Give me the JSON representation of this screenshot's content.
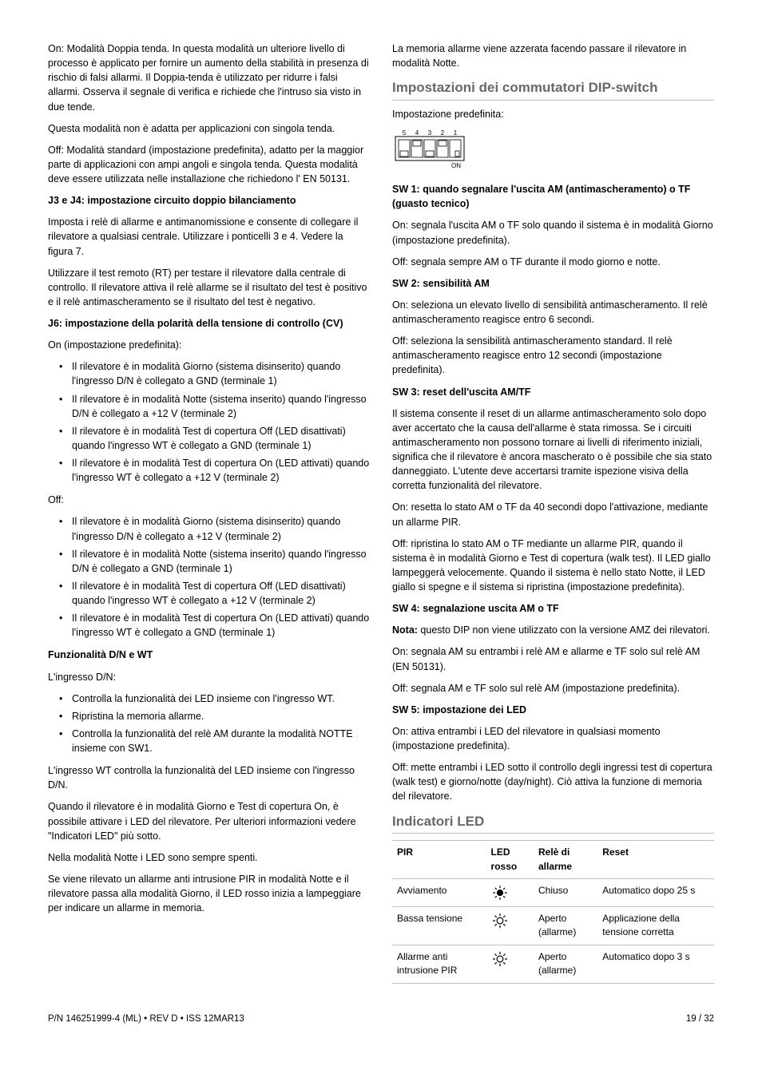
{
  "left": {
    "p1": "On: Modalità Doppia tenda. In questa modalità un ulteriore livello di processo è applicato per fornire un aumento della stabilità in presenza di rischio di falsi allarmi. Il Doppia-tenda è utilizzato per ridurre i falsi allarmi. Osserva il segnale di verifica e richiede che l'intruso sia visto in due tende.",
    "p2": "Questa modalità non è adatta per applicazioni con singola tenda.",
    "p3": "Off: Modalità standard (impostazione predefinita), adatto per la maggior parte di applicazioni con ampi angoli e singola tenda. Questa modalità deve essere utilizzata nelle installazione che richiedono l' EN 50131.",
    "h_j3j4": "J3 e J4: impostazione circuito doppio bilanciamento",
    "p4": "Imposta i relè di allarme e antimanomissione e consente di collegare il rilevatore a qualsiasi centrale. Utilizzare i ponticelli 3 e 4. Vedere la figura 7.",
    "p5": "Utilizzare il test remoto (RT) per testare il rilevatore dalla centrale di controllo. Il rilevatore attiva il relè allarme se il risultato del test è positivo e il relè antimascheramento se il risultato del test è negativo.",
    "h_j6": "J6: impostazione della polarità della tensione di controllo (CV)",
    "p6": "On (impostazione predefinita):",
    "on_list": [
      "Il rilevatore è in modalità Giorno (sistema disinserito) quando l'ingresso D/N è collegato a GND (terminale 1)",
      "Il rilevatore è in modalità Notte (sistema inserito) quando l'ingresso D/N è collegato a +12 V (terminale 2)",
      "Il rilevatore è in modalità Test di copertura Off (LED disattivati) quando l'ingresso WT è collegato a GND (terminale 1)",
      "Il rilevatore è in modalità Test di copertura On (LED attivati) quando l'ingresso WT è collegato a +12 V (terminale 2)"
    ],
    "p7": "Off:",
    "off_list": [
      "Il rilevatore è in modalità Giorno (sistema disinserito) quando l'ingresso D/N è collegato a +12 V (terminale 2)",
      "Il rilevatore è in modalità Notte (sistema inserito) quando l'ingresso D/N è collegato a GND (terminale 1)",
      "Il rilevatore è in modalità Test di copertura Off (LED disattivati) quando l'ingresso WT è collegato a +12 V (terminale 2)",
      "Il rilevatore è in modalità Test di copertura On (LED attivati) quando l'ingresso WT è collegato a GND (terminale 1)"
    ],
    "h_dn_wt": "Funzionalità D/N e WT",
    "p8": "L'ingresso D/N:",
    "dn_list": [
      "Controlla la funzionalità dei LED insieme con l'ingresso WT.",
      "Ripristina la memoria allarme.",
      "Controlla la funzionalità del relè AM durante la modalità NOTTE insieme con SW1."
    ],
    "p9": "L'ingresso WT controlla la funzionalità del LED insieme con l'ingresso D/N.",
    "p10": "Quando il rilevatore è in modalità Giorno e Test di copertura On, è possibile attivare i LED del rilevatore. Per ulteriori informazioni vedere \"Indicatori LED\" più sotto.",
    "p11": "Nella modalità Notte i LED sono sempre spenti.",
    "p12": "Se viene rilevato un allarme anti intrusione PIR in modalità Notte e il rilevatore passa alla modalità Giorno, il LED rosso inizia a lampeggiare per indicare un allarme in memoria."
  },
  "right": {
    "p1": "La memoria allarme viene azzerata facendo passare il rilevatore in modalità Notte.",
    "h_dip": "Impostazioni dei commutatori DIP-switch",
    "p2": "Impostazione predefinita:",
    "dip": {
      "labels": [
        "5",
        "4",
        "3",
        "2",
        "1"
      ],
      "on_label": "ON",
      "positions": [
        "down",
        "up",
        "down",
        "up",
        "down"
      ],
      "last_right": true
    },
    "h_sw1": "SW 1: quando segnalare l'uscita AM (antimascheramento) o TF (guasto tecnico)",
    "sw1_on": "On: segnala l'uscita AM o TF solo quando il sistema è in modalità Giorno (impostazione predefinita).",
    "sw1_off": "Off: segnala sempre AM o TF durante il modo giorno e notte.",
    "h_sw2": "SW 2: sensibilità AM",
    "sw2_on": "On: seleziona un elevato livello di sensibilità antimascheramento. Il relè antimascheramento reagisce entro 6 secondi.",
    "sw2_off": "Off: seleziona la sensibilità antimascheramento standard. Il relè antimascheramento reagisce entro 12 secondi (impostazione predefinita).",
    "h_sw3": "SW 3: reset dell'uscita AM/TF",
    "sw3_p1": "Il sistema consente il reset di un allarme antimascheramento solo dopo aver accertato che la causa dell'allarme è stata rimossa. Se i circuiti antimascheramento non possono tornare ai livelli di riferimento iniziali, significa che il rilevatore è ancora mascherato o è possibile che sia stato danneggiato. L'utente deve accertarsi tramite ispezione visiva della corretta funzionalità del rilevatore.",
    "sw3_on": "On: resetta lo stato AM o TF da 40 secondi dopo l'attivazione, mediante un allarme PIR.",
    "sw3_off": "Off: ripristina lo stato AM o TF mediante un allarme PIR, quando il sistema è in modalità Giorno e Test di copertura (walk test). Il LED giallo lampeggerà velocemente. Quando il sistema è nello stato Notte, il LED giallo si spegne e il sistema si ripristina (impostazione predefinita).",
    "h_sw4": "SW 4: segnalazione uscita AM o TF",
    "sw4_nota_label": "Nota:",
    "sw4_nota": " questo DIP non viene utilizzato con la versione AMZ dei rilevatori.",
    "sw4_on": "On: segnala AM su entrambi i relè AM e allarme e TF solo sul relè AM (EN 50131).",
    "sw4_off": "Off: segnala AM e TF solo sul relè AM (impostazione predefinita).",
    "h_sw5": "SW 5: impostazione dei LED",
    "sw5_on": "On: attiva entrambi i LED del rilevatore in qualsiasi momento (impostazione predefinita).",
    "sw5_off": "Off: mette entrambi i LED sotto il controllo degli ingressi test di copertura (walk test) e giorno/notte (day/night). Ciò attiva la funzione di memoria del rilevatore.",
    "h_led": "Indicatori LED",
    "table": {
      "headers": [
        "PIR",
        "LED rosso",
        "Relè di allarme",
        "Reset"
      ],
      "rows": [
        {
          "pir": "Avviamento",
          "led": "solid",
          "relay": "Chiuso",
          "reset": "Automatico dopo 25 s"
        },
        {
          "pir": "Bassa tensione",
          "led": "flash",
          "relay": "Aperto (allarme)",
          "reset": "Applicazione della tensione corretta"
        },
        {
          "pir": "Allarme anti intrusione PIR",
          "led": "flash",
          "relay": "Aperto (allarme)",
          "reset": "Automatico dopo 3 s"
        }
      ]
    }
  },
  "footer": {
    "left": "P/N 146251999-4 (ML) • REV D • ISS 12MAR13",
    "right": "19 / 32"
  },
  "icons": {
    "solid_color": "#000",
    "flash_color": "#000"
  }
}
